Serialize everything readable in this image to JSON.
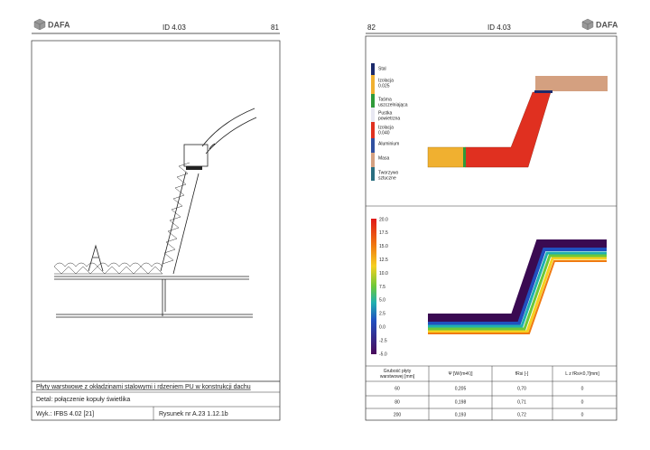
{
  "left_page": {
    "header": {
      "logo": "DAFA",
      "id": "ID 4.03",
      "page": "81"
    },
    "caption": {
      "title": "Płyty warstwowe z okładzinami stalowymi i rdzeniem PU w konstrukcji dachu",
      "detail": "Detal:  połączenie kopuły świetlika",
      "source": "Wyk.: IFBS 4.02 [21]",
      "drawing": "Rysunek nr A.23  1.12.1b"
    }
  },
  "right_page": {
    "header": {
      "page": "82",
      "id": "ID 4.03",
      "logo": "DAFA"
    },
    "materials": [
      {
        "lines": [
          "Stal"
        ],
        "color": "#1c2a6b"
      },
      {
        "lines": [
          "Izolacja",
          "0.025"
        ],
        "color": "#f0b030"
      },
      {
        "lines": [
          "Taśma",
          "uszczelniająca"
        ],
        "color": "#2f9a3a"
      },
      {
        "lines": [
          "Pustka",
          "powietrzna"
        ],
        "color": "#e8e8f2"
      },
      {
        "lines": [
          "Izolacja",
          "0.040"
        ],
        "color": "#e03020"
      },
      {
        "lines": [
          "Aluminium"
        ],
        "color": "#3050a0"
      },
      {
        "lines": [
          "Masa"
        ],
        "color": "#d4a080"
      },
      {
        "lines": [
          "Tworzywo",
          "sztuczne"
        ],
        "color": "#2a6f80"
      }
    ],
    "temperature_scale": [
      "20.0",
      "17.5",
      "15.0",
      "12.5",
      "10.0",
      "7.5",
      "5.0",
      "2.5",
      "0.0",
      "-2.5",
      "-5.0"
    ],
    "table": {
      "header": [
        [
          "Grubość płyty",
          "warstwowej [mm]"
        ],
        [
          "Ψ [W/(m•K)]"
        ],
        [
          "fRsi [-]"
        ],
        [
          "L z fRsi<0,7[mm]"
        ]
      ],
      "rows": [
        [
          "60",
          "0,205",
          "0,70",
          "0"
        ],
        [
          "80",
          "0,198",
          "0,71",
          "0"
        ],
        [
          "200",
          "0,193",
          "0,72",
          "0"
        ]
      ]
    }
  }
}
